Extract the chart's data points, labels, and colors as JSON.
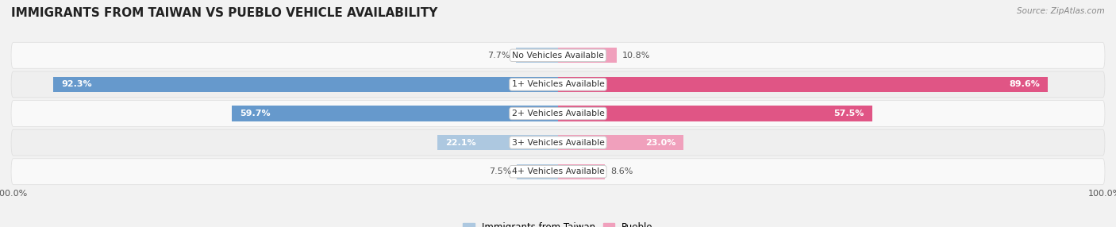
{
  "title": "IMMIGRANTS FROM TAIWAN VS PUEBLO VEHICLE AVAILABILITY",
  "source": "Source: ZipAtlas.com",
  "categories": [
    "No Vehicles Available",
    "1+ Vehicles Available",
    "2+ Vehicles Available",
    "3+ Vehicles Available",
    "4+ Vehicles Available"
  ],
  "taiwan_values": [
    7.7,
    92.3,
    59.7,
    22.1,
    7.5
  ],
  "pueblo_values": [
    10.8,
    89.6,
    57.5,
    23.0,
    8.6
  ],
  "taiwan_color_light": "#adc8e0",
  "taiwan_color_dark": "#6699cc",
  "pueblo_color_light": "#f0a0bc",
  "pueblo_color_dark": "#e05585",
  "bar_height": 0.52,
  "background_color": "#f2f2f2",
  "row_colors": [
    "#f9f9f9",
    "#efefef",
    "#f9f9f9",
    "#efefef",
    "#f9f9f9"
  ],
  "max_value": 100.0,
  "legend_taiwan": "Immigrants from Taiwan",
  "legend_pueblo": "Pueblo",
  "value_threshold": 15
}
